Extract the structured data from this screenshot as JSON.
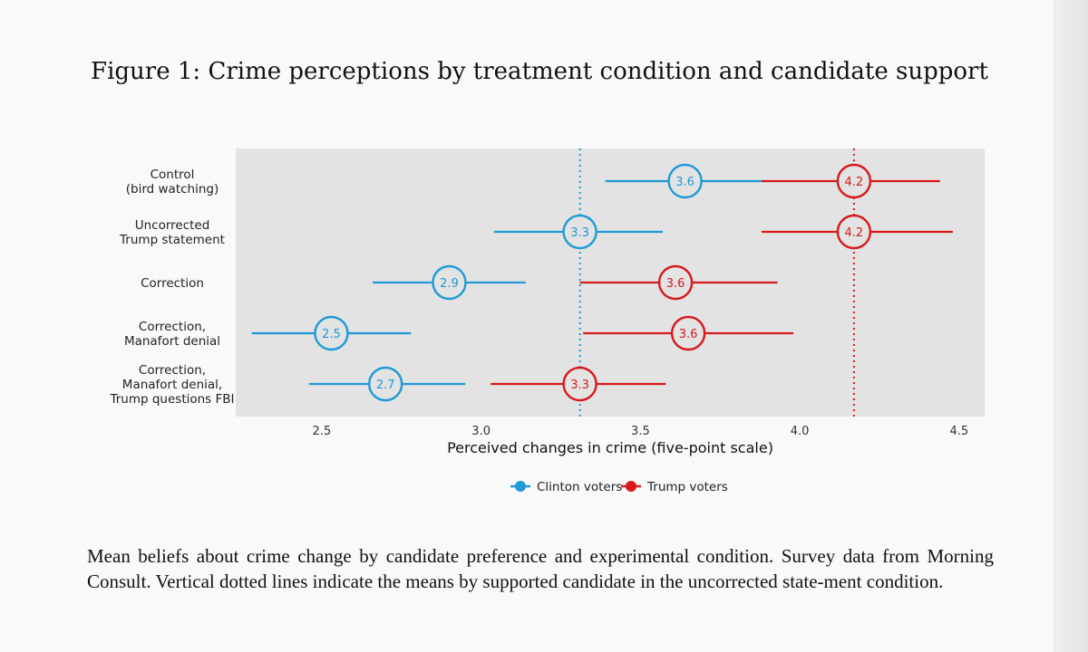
{
  "figure": {
    "title": "Figure 1: Crime perceptions by treatment condition and candidate support",
    "caption": "Mean beliefs about crime change by candidate preference and experimental condition.  Survey data from Morning Consult. Vertical dotted lines indicate the means by supported candidate in the uncorrected state-ment condition."
  },
  "colors": {
    "clinton": "#1e9ad6",
    "trump": "#d7191c",
    "panel": "#e3e3e3"
  },
  "chart_data": {
    "type": "dot-and-whisker",
    "xlabel": "Perceived changes in crime (five-point scale)",
    "xlim": [
      2.23,
      4.58
    ],
    "xticks": [
      2.5,
      3.0,
      3.5,
      4.0,
      4.5
    ],
    "xtick_labels": [
      "2.5",
      "3.0",
      "3.5",
      "4.0",
      "4.5"
    ],
    "grid": false,
    "legend": {
      "position": "bottom",
      "entries": [
        "Clinton voters",
        "Trump voters"
      ]
    },
    "categories": [
      [
        "Control",
        "(bird watching)"
      ],
      [
        "Uncorrected",
        "Trump statement"
      ],
      [
        "Correction"
      ],
      [
        "Correction,",
        "Manafort denial"
      ],
      [
        "Correction,",
        "Manafort denial,",
        "Trump questions FBI"
      ]
    ],
    "reference_lines": [
      {
        "series": "Clinton voters",
        "x": 3.31
      },
      {
        "series": "Trump voters",
        "x": 4.17
      }
    ],
    "series": [
      {
        "name": "Clinton voters",
        "points": [
          {
            "mean": 3.64,
            "label": "3.6",
            "lo": 3.39,
            "hi": 3.88
          },
          {
            "mean": 3.31,
            "label": "3.3",
            "lo": 3.04,
            "hi": 3.57
          },
          {
            "mean": 2.9,
            "label": "2.9",
            "lo": 2.66,
            "hi": 3.14
          },
          {
            "mean": 2.53,
            "label": "2.5",
            "lo": 2.28,
            "hi": 2.78
          },
          {
            "mean": 2.7,
            "label": "2.7",
            "lo": 2.46,
            "hi": 2.95
          }
        ]
      },
      {
        "name": "Trump voters",
        "points": [
          {
            "mean": 4.17,
            "label": "4.2",
            "lo": 3.88,
            "hi": 4.44
          },
          {
            "mean": 4.17,
            "label": "4.2",
            "lo": 3.88,
            "hi": 4.48
          },
          {
            "mean": 3.61,
            "label": "3.6",
            "lo": 3.31,
            "hi": 3.93
          },
          {
            "mean": 3.65,
            "label": "3.6",
            "lo": 3.32,
            "hi": 3.98
          },
          {
            "mean": 3.31,
            "label": "3.3",
            "lo": 3.03,
            "hi": 3.58
          }
        ]
      }
    ]
  }
}
